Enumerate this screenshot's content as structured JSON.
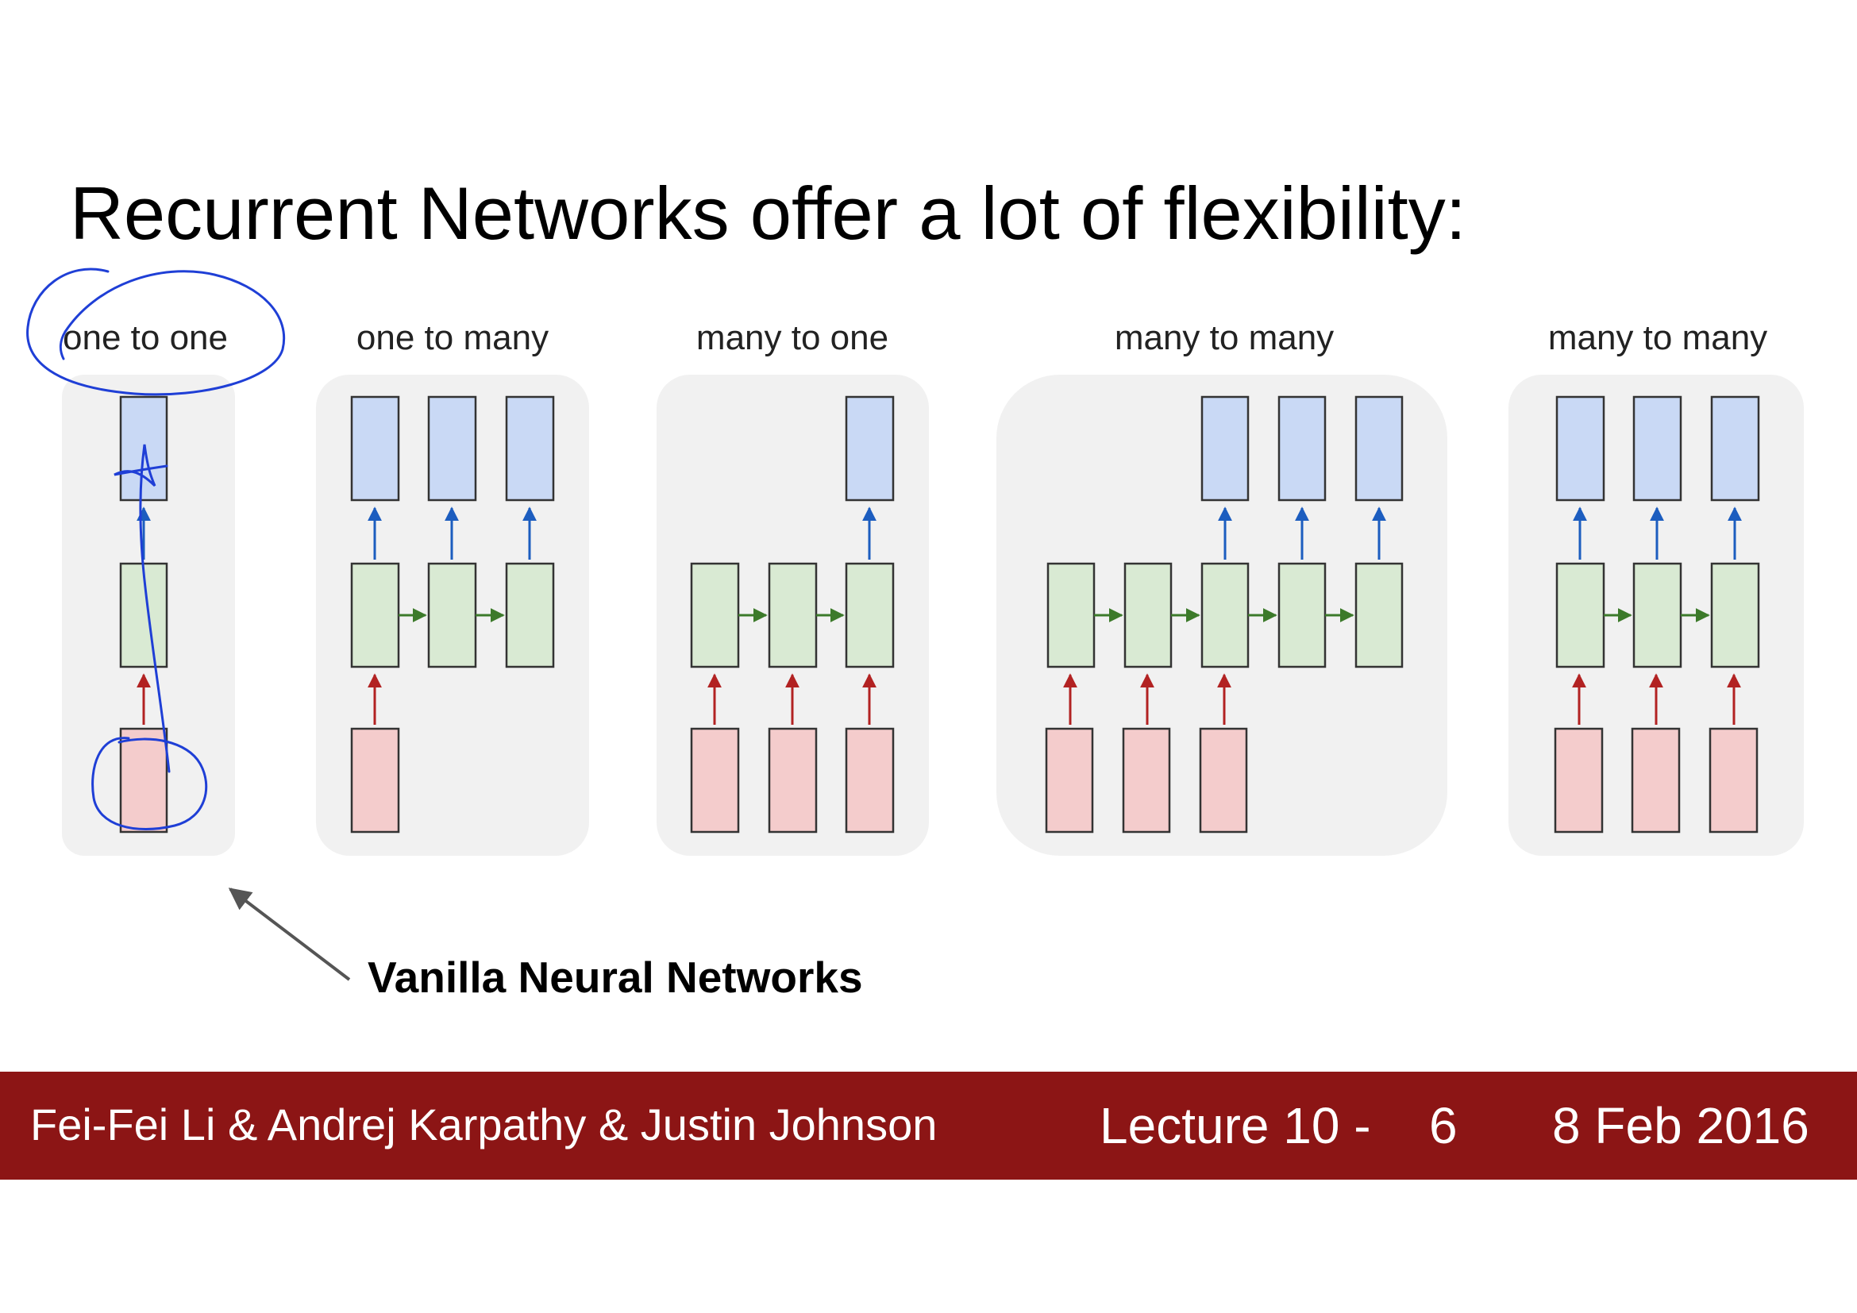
{
  "slide": {
    "title": "Recurrent Networks offer a lot of flexibility:",
    "caption": "Vanilla Neural Networks"
  },
  "diagram": {
    "panels": [
      {
        "label": "one to one"
      },
      {
        "label": "one to many"
      },
      {
        "label": "many to one"
      },
      {
        "label": "many to many"
      },
      {
        "label": "many to many"
      }
    ]
  },
  "footer": {
    "authors": "Fei-Fei Li & Andrej Karpathy & Justin Johnson",
    "lecture": "Lecture 10 -",
    "page": "6",
    "date": "8 Feb 2016"
  },
  "colors": {
    "footer_bg": "#8c1515",
    "panel_bg": "#f1f1f1",
    "output_box": "#c9d9f5",
    "hidden_box": "#d9ead3",
    "input_box": "#f4cccc",
    "output_arrow": "#1c5dbf",
    "hidden_arrow": "#3c7a2a",
    "input_arrow": "#b22222",
    "annotation_ink": "#1f3fd6"
  }
}
